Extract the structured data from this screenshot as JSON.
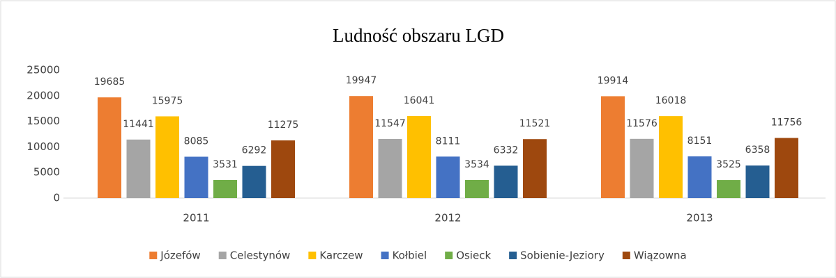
{
  "chart_data": {
    "type": "bar",
    "title": "Ludność obszaru LGD",
    "categories": [
      "2011",
      "2012",
      "2013"
    ],
    "series": [
      {
        "name": "Józefów",
        "color": "#ed7d31",
        "values": [
          19685,
          19947,
          19914
        ]
      },
      {
        "name": "Celestynów",
        "color": "#a5a5a5",
        "values": [
          11441,
          11547,
          11576
        ]
      },
      {
        "name": "Karczew",
        "color": "#ffc000",
        "values": [
          15975,
          16041,
          16018
        ]
      },
      {
        "name": "Kołbiel",
        "color": "#4472c4",
        "values": [
          8085,
          8111,
          8151
        ]
      },
      {
        "name": "Osieck",
        "color": "#70ad47",
        "values": [
          3531,
          3534,
          3525
        ]
      },
      {
        "name": "Sobienie-Jeziory",
        "color": "#255e91",
        "values": [
          6292,
          6332,
          6358
        ]
      },
      {
        "name": "Wiązowna",
        "color": "#9e480e",
        "values": [
          11275,
          11521,
          11756
        ]
      }
    ],
    "ylim": [
      0,
      25000
    ],
    "yticks": [
      0,
      5000,
      10000,
      15000,
      20000,
      25000
    ],
    "grid": false,
    "legend": "bottom"
  }
}
